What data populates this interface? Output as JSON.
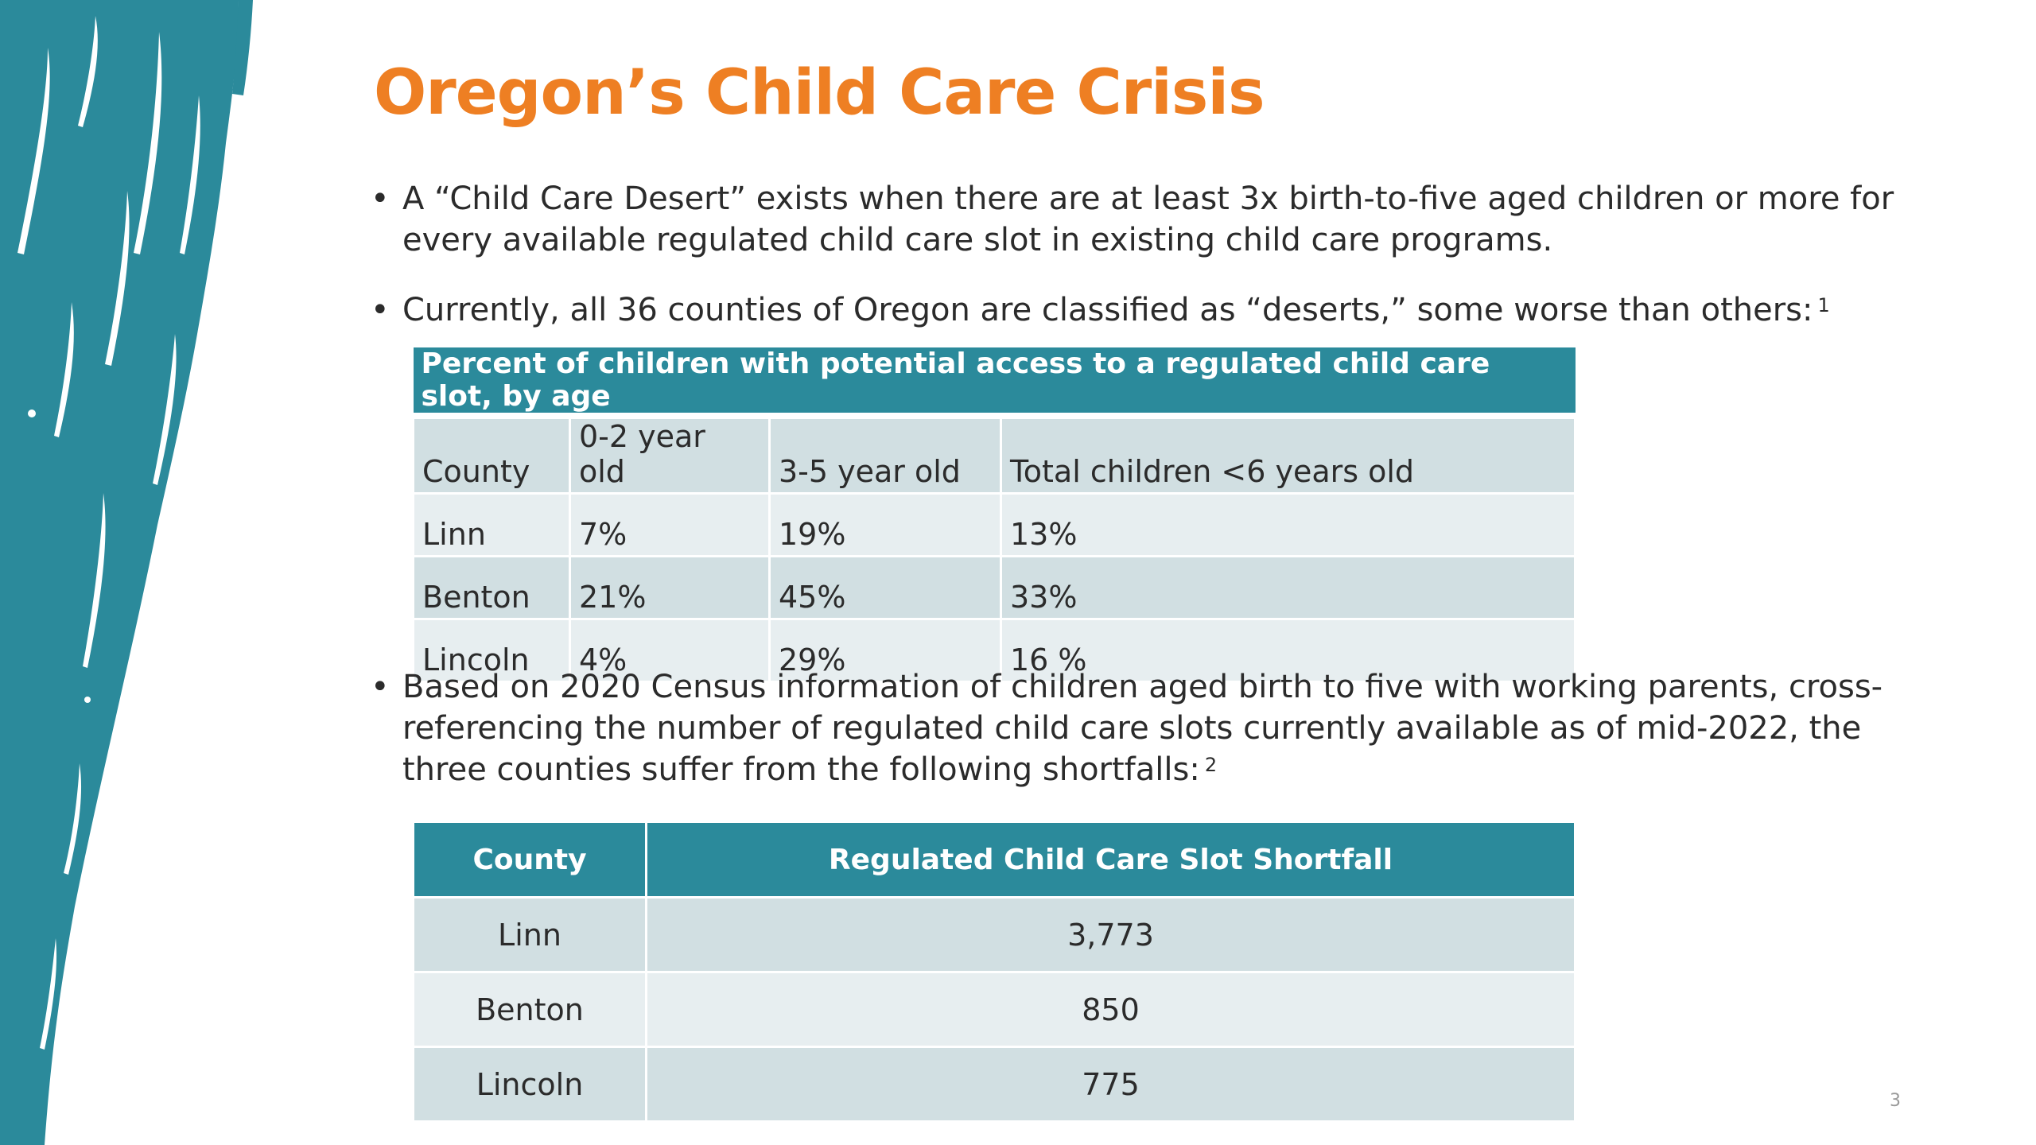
{
  "title": "Oregon’s Child Care Crisis",
  "bullets": [
    "A “Child Care Desert” exists when there are at least 3x birth-to-five aged children or more for every available regulated child care slot in existing child care programs.",
    "Currently, all 36 counties of Oregon are classified as “deserts,” some worse than others:",
    "Based on 2020 Census information of children aged birth to five with working parents, cross-referencing the number of regulated child care slots currently available as of mid-2022, the three counties suffer from the following shortfalls:"
  ],
  "bullet_glyph": "•",
  "footnotes": [
    "1",
    "2"
  ],
  "table1": {
    "caption": "Percent of children with potential access to a regulated child care slot, by age",
    "headers": [
      "County",
      "0-2 year old",
      "3-5 year old",
      "Total children <6 years old"
    ],
    "rows": [
      [
        "Linn",
        "7%",
        "19%",
        "13%"
      ],
      [
        "Benton",
        "21%",
        "45%",
        "33%"
      ],
      [
        "Lincoln",
        "4%",
        "29%",
        "16 %"
      ]
    ]
  },
  "table2": {
    "headers": [
      "County",
      "Regulated Child Care Slot Shortfall"
    ],
    "rows": [
      [
        "Linn",
        "3,773"
      ],
      [
        "Benton",
        "850"
      ],
      [
        "Lincoln",
        "775"
      ]
    ]
  },
  "page_number": "3",
  "colors": {
    "accent": "#ee7f23",
    "teal": "#2b8a9b",
    "row_dark": "#d1dfe2",
    "row_light": "#e7eef0"
  }
}
